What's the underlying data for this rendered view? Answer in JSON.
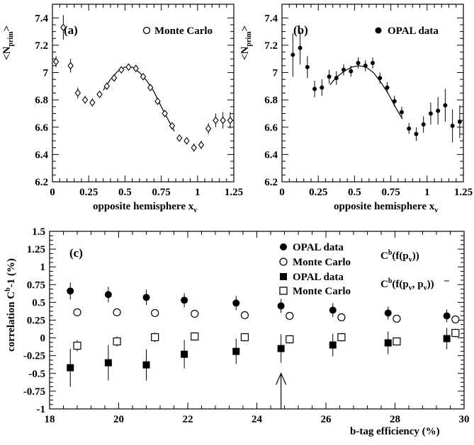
{
  "chart_data": [
    {
      "type": "scatter",
      "panel_label": "(a)",
      "legend": [
        {
          "marker": "open-circle",
          "label": "Monte Carlo"
        }
      ],
      "ylabel": "<N",
      "ylabel_sub": "prim",
      "ylabel_close": ">",
      "xlabel": "opposite hemisphere x",
      "xlabel_sub": "v",
      "xlim": [
        0,
        1.25
      ],
      "ylim": [
        6.2,
        7.5
      ],
      "xticks": [
        "0",
        "0.25",
        "0.5",
        "0.75",
        "1",
        "1.25"
      ],
      "yticks": [
        "6.2",
        "6.4",
        "6.6",
        "6.8",
        "7",
        "7.2",
        "7.4"
      ],
      "series": [
        {
          "marker": "open-diamond",
          "x": [
            0.025,
            0.075,
            0.125,
            0.175,
            0.225,
            0.275,
            0.325,
            0.375,
            0.425,
            0.475,
            0.525,
            0.575,
            0.625,
            0.675,
            0.725,
            0.775,
            0.825,
            0.875,
            0.925,
            0.975,
            1.025,
            1.075,
            1.125,
            1.175,
            1.225
          ],
          "y": [
            7.08,
            7.33,
            7.05,
            6.85,
            6.8,
            6.78,
            6.84,
            6.9,
            6.96,
            7.02,
            7.04,
            7.03,
            6.97,
            6.89,
            6.79,
            6.7,
            6.61,
            6.52,
            6.5,
            6.45,
            6.47,
            6.59,
            6.65,
            6.65,
            6.65
          ],
          "err": [
            0.04,
            0.09,
            0.05,
            0.04,
            0.03,
            0.03,
            0.02,
            0.02,
            0.02,
            0.02,
            0.02,
            0.02,
            0.02,
            0.02,
            0.02,
            0.02,
            0.02,
            0.02,
            0.02,
            0.03,
            0.03,
            0.04,
            0.05,
            0.06,
            0.06
          ]
        }
      ],
      "fit_curve": {
        "x": [
          0.35,
          0.4,
          0.45,
          0.5,
          0.55,
          0.6,
          0.65,
          0.7,
          0.75,
          0.8,
          0.84
        ],
        "y": [
          6.87,
          6.95,
          7.01,
          7.04,
          7.04,
          7.0,
          6.94,
          6.86,
          6.75,
          6.65,
          6.57
        ]
      }
    },
    {
      "type": "scatter",
      "panel_label": "(b)",
      "legend": [
        {
          "marker": "filled-circle",
          "label": "OPAL data"
        }
      ],
      "ylabel": "<N",
      "ylabel_sub": "prim",
      "ylabel_close": ">",
      "xlabel": "opposite hemisphere x",
      "xlabel_sub": "v",
      "xlim": [
        0,
        1.25
      ],
      "ylim": [
        6.2,
        7.5
      ],
      "xticks": [
        "0",
        "0.25",
        "0.5",
        "0.75",
        "1",
        "1.25"
      ],
      "yticks": [
        "6.2",
        "6.4",
        "6.6",
        "6.8",
        "7",
        "7.2",
        "7.4"
      ],
      "series": [
        {
          "marker": "filled-circle",
          "x": [
            0.075,
            0.125,
            0.175,
            0.225,
            0.275,
            0.325,
            0.375,
            0.425,
            0.475,
            0.525,
            0.575,
            0.625,
            0.675,
            0.725,
            0.775,
            0.825,
            0.875,
            0.925,
            0.975,
            1.025,
            1.075,
            1.125,
            1.175,
            1.225
          ],
          "y": [
            7.13,
            7.18,
            7.04,
            6.88,
            6.89,
            6.97,
            6.96,
            7.02,
            7.01,
            7.07,
            7.05,
            7.07,
            6.96,
            6.89,
            6.79,
            6.71,
            6.59,
            6.55,
            6.62,
            6.7,
            6.72,
            6.76,
            6.61,
            6.64
          ],
          "err": [
            0.16,
            0.12,
            0.08,
            0.06,
            0.06,
            0.05,
            0.05,
            0.04,
            0.04,
            0.04,
            0.04,
            0.04,
            0.04,
            0.04,
            0.04,
            0.04,
            0.04,
            0.05,
            0.06,
            0.08,
            0.1,
            0.12,
            0.12,
            0.12
          ]
        }
      ],
      "fit_curve": {
        "x": [
          0.33,
          0.38,
          0.43,
          0.48,
          0.53,
          0.58,
          0.63,
          0.68,
          0.73,
          0.78,
          0.83
        ],
        "y": [
          6.91,
          6.97,
          7.01,
          7.04,
          7.05,
          7.04,
          7.0,
          6.93,
          6.85,
          6.75,
          6.66
        ]
      }
    },
    {
      "type": "scatter",
      "panel_label": "(c)",
      "ylabel": "correlation C",
      "ylabel_sup": "b",
      "ylabel_tail": "-1 (%)",
      "xlabel": "b-tag efficiency (%)",
      "xlim": [
        18,
        30
      ],
      "ylim": [
        -1,
        1.5
      ],
      "xticks": [
        "18",
        "20",
        "22",
        "24",
        "26",
        "28",
        "30"
      ],
      "yticks": [
        "-1",
        "-0.75",
        "-0.5",
        "-0.25",
        "0",
        "0.25",
        "0.5",
        "0.75",
        "1",
        "1.25",
        "1.5"
      ],
      "legend": [
        {
          "marker": "filled-circle",
          "label": "OPAL data"
        },
        {
          "marker": "open-circle",
          "label": "Monte Carlo"
        },
        {
          "marker": "filled-square",
          "label": "OPAL data"
        },
        {
          "marker": "open-square",
          "label": "Monte Carlo"
        }
      ],
      "group_labels": [
        {
          "text_main": "C",
          "text_sup": "b",
          "text_rest": "(f(p",
          "text_sub": "v",
          "text_tail": "))"
        },
        {
          "text_main": "C",
          "text_sup": "b",
          "text_rest": "(f(p",
          "text_sub": "v",
          "text_mid": ", p",
          "text_sub2": "v",
          "text_tail": "))"
        }
      ],
      "series": [
        {
          "name": "OPAL data",
          "marker": "filled-circle",
          "x": [
            18.6,
            19.7,
            20.8,
            21.9,
            23.4,
            24.7,
            26.2,
            27.8,
            29.5
          ],
          "y": [
            0.66,
            0.61,
            0.57,
            0.53,
            0.49,
            0.45,
            0.39,
            0.35,
            0.31
          ],
          "err": [
            0.12,
            0.11,
            0.11,
            0.1,
            0.1,
            0.1,
            0.1,
            0.09,
            0.09
          ]
        },
        {
          "name": "Monte Carlo",
          "marker": "open-circle",
          "x": [
            18.8,
            19.95,
            21.05,
            22.2,
            23.65,
            24.95,
            26.45,
            28.05,
            29.75
          ],
          "y": [
            0.36,
            0.36,
            0.35,
            0.34,
            0.32,
            0.31,
            0.29,
            0.27,
            0.26
          ],
          "err": [
            0.02,
            0.02,
            0.02,
            0.02,
            0.02,
            0.02,
            0.02,
            0.02,
            0.02
          ]
        },
        {
          "name": "OPAL data",
          "marker": "filled-square",
          "x": [
            18.6,
            19.7,
            20.8,
            21.9,
            23.4,
            24.7,
            26.2,
            27.8,
            29.5
          ],
          "y": [
            -0.42,
            -0.35,
            -0.38,
            -0.23,
            -0.19,
            -0.15,
            -0.1,
            -0.07,
            -0.01
          ],
          "err": [
            0.27,
            0.25,
            0.22,
            0.2,
            0.18,
            0.2,
            0.16,
            0.16,
            0.15
          ]
        },
        {
          "name": "Monte Carlo",
          "marker": "open-square",
          "x": [
            18.8,
            19.95,
            21.05,
            22.2,
            23.65,
            24.95,
            26.45,
            28.05,
            29.75
          ],
          "y": [
            -0.11,
            -0.05,
            0.01,
            0.02,
            0.01,
            -0.02,
            0.01,
            -0.05,
            0.07
          ],
          "err": [
            0.08,
            0.07,
            0.07,
            0.06,
            0.06,
            0.06,
            0.06,
            0.05,
            0.06
          ]
        }
      ],
      "arrow": {
        "x": 24.7,
        "y_from": -1.0,
        "y_to": -0.5
      }
    }
  ]
}
